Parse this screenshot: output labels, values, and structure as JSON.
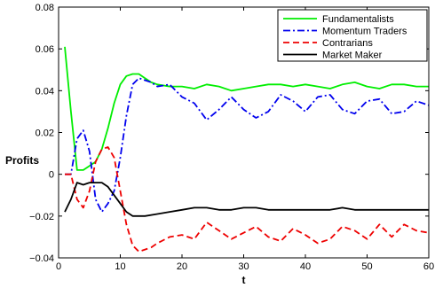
{
  "chart_data": {
    "type": "line",
    "title": "",
    "xlabel": "t",
    "ylabel": "Profits",
    "xlim": [
      0,
      60
    ],
    "ylim": [
      -0.04,
      0.08
    ],
    "xticks": [
      0,
      10,
      20,
      30,
      40,
      50,
      60
    ],
    "xtick_labels": [
      "0",
      "10",
      "20",
      "30",
      "40",
      "50",
      "60"
    ],
    "yticks": [
      -0.04,
      -0.02,
      0,
      0.02,
      0.04,
      0.06,
      0.08
    ],
    "ytick_labels": [
      "−0.04",
      "−0.02",
      "0",
      "0.02",
      "0.04",
      "0.06",
      "0.08"
    ],
    "grid": false,
    "legend_position": "top-right",
    "series": [
      {
        "name": "Fundamentalists",
        "color": "#00ee00",
        "dash": "solid",
        "x": [
          1,
          2,
          3,
          4,
          5,
          6,
          7,
          8,
          9,
          10,
          11,
          12,
          13,
          14,
          15,
          16,
          18,
          20,
          22,
          24,
          26,
          28,
          30,
          32,
          34,
          36,
          38,
          40,
          42,
          44,
          46,
          48,
          50,
          52,
          54,
          56,
          58,
          60
        ],
        "values": [
          0.061,
          0.03,
          0.002,
          0.002,
          0.004,
          0.006,
          0.012,
          0.022,
          0.034,
          0.043,
          0.047,
          0.048,
          0.048,
          0.046,
          0.044,
          0.043,
          0.042,
          0.042,
          0.041,
          0.043,
          0.042,
          0.04,
          0.041,
          0.042,
          0.043,
          0.043,
          0.042,
          0.043,
          0.042,
          0.041,
          0.043,
          0.044,
          0.042,
          0.041,
          0.043,
          0.043,
          0.042,
          0.042
        ]
      },
      {
        "name": "Momentum Traders",
        "color": "#0000ee",
        "dash": "dashdot",
        "x": [
          1,
          2,
          3,
          4,
          5,
          6,
          7,
          8,
          9,
          10,
          11,
          12,
          13,
          14,
          15,
          16,
          18,
          20,
          22,
          24,
          26,
          28,
          30,
          32,
          34,
          36,
          38,
          40,
          42,
          44,
          46,
          48,
          50,
          52,
          54,
          56,
          58,
          60
        ],
        "values": [
          0.0,
          0.0,
          0.017,
          0.021,
          0.011,
          -0.012,
          -0.018,
          -0.014,
          -0.008,
          0.008,
          0.028,
          0.043,
          0.046,
          0.045,
          0.044,
          0.042,
          0.043,
          0.037,
          0.034,
          0.026,
          0.031,
          0.037,
          0.031,
          0.027,
          0.03,
          0.038,
          0.035,
          0.03,
          0.037,
          0.038,
          0.031,
          0.029,
          0.035,
          0.036,
          0.029,
          0.03,
          0.035,
          0.033
        ]
      },
      {
        "name": "Contrarians",
        "color": "#ee0000",
        "dash": "dashed",
        "x": [
          1,
          2,
          3,
          4,
          5,
          6,
          7,
          8,
          9,
          10,
          11,
          12,
          13,
          14,
          15,
          16,
          18,
          20,
          22,
          24,
          26,
          28,
          30,
          32,
          34,
          36,
          38,
          40,
          42,
          44,
          46,
          48,
          50,
          52,
          54,
          56,
          58,
          60
        ],
        "values": [
          0.0,
          0.0,
          -0.012,
          -0.016,
          -0.008,
          0.006,
          0.012,
          0.013,
          0.008,
          -0.008,
          -0.024,
          -0.034,
          -0.037,
          -0.036,
          -0.035,
          -0.033,
          -0.03,
          -0.029,
          -0.031,
          -0.023,
          -0.027,
          -0.031,
          -0.028,
          -0.025,
          -0.03,
          -0.032,
          -0.026,
          -0.029,
          -0.033,
          -0.031,
          -0.025,
          -0.027,
          -0.031,
          -0.024,
          -0.03,
          -0.024,
          -0.027,
          -0.028
        ]
      },
      {
        "name": "Market Maker",
        "color": "#000000",
        "dash": "solid",
        "x": [
          1,
          2,
          3,
          4,
          5,
          6,
          7,
          8,
          9,
          10,
          11,
          12,
          13,
          14,
          16,
          18,
          20,
          22,
          24,
          26,
          28,
          30,
          32,
          34,
          36,
          38,
          40,
          42,
          44,
          46,
          48,
          50,
          52,
          54,
          56,
          58,
          60
        ],
        "values": [
          -0.018,
          -0.012,
          -0.004,
          -0.005,
          -0.004,
          -0.004,
          -0.004,
          -0.006,
          -0.01,
          -0.014,
          -0.018,
          -0.02,
          -0.02,
          -0.02,
          -0.019,
          -0.018,
          -0.017,
          -0.016,
          -0.016,
          -0.017,
          -0.017,
          -0.016,
          -0.016,
          -0.017,
          -0.017,
          -0.017,
          -0.017,
          -0.017,
          -0.017,
          -0.016,
          -0.017,
          -0.017,
          -0.017,
          -0.017,
          -0.017,
          -0.017,
          -0.017
        ]
      }
    ]
  }
}
